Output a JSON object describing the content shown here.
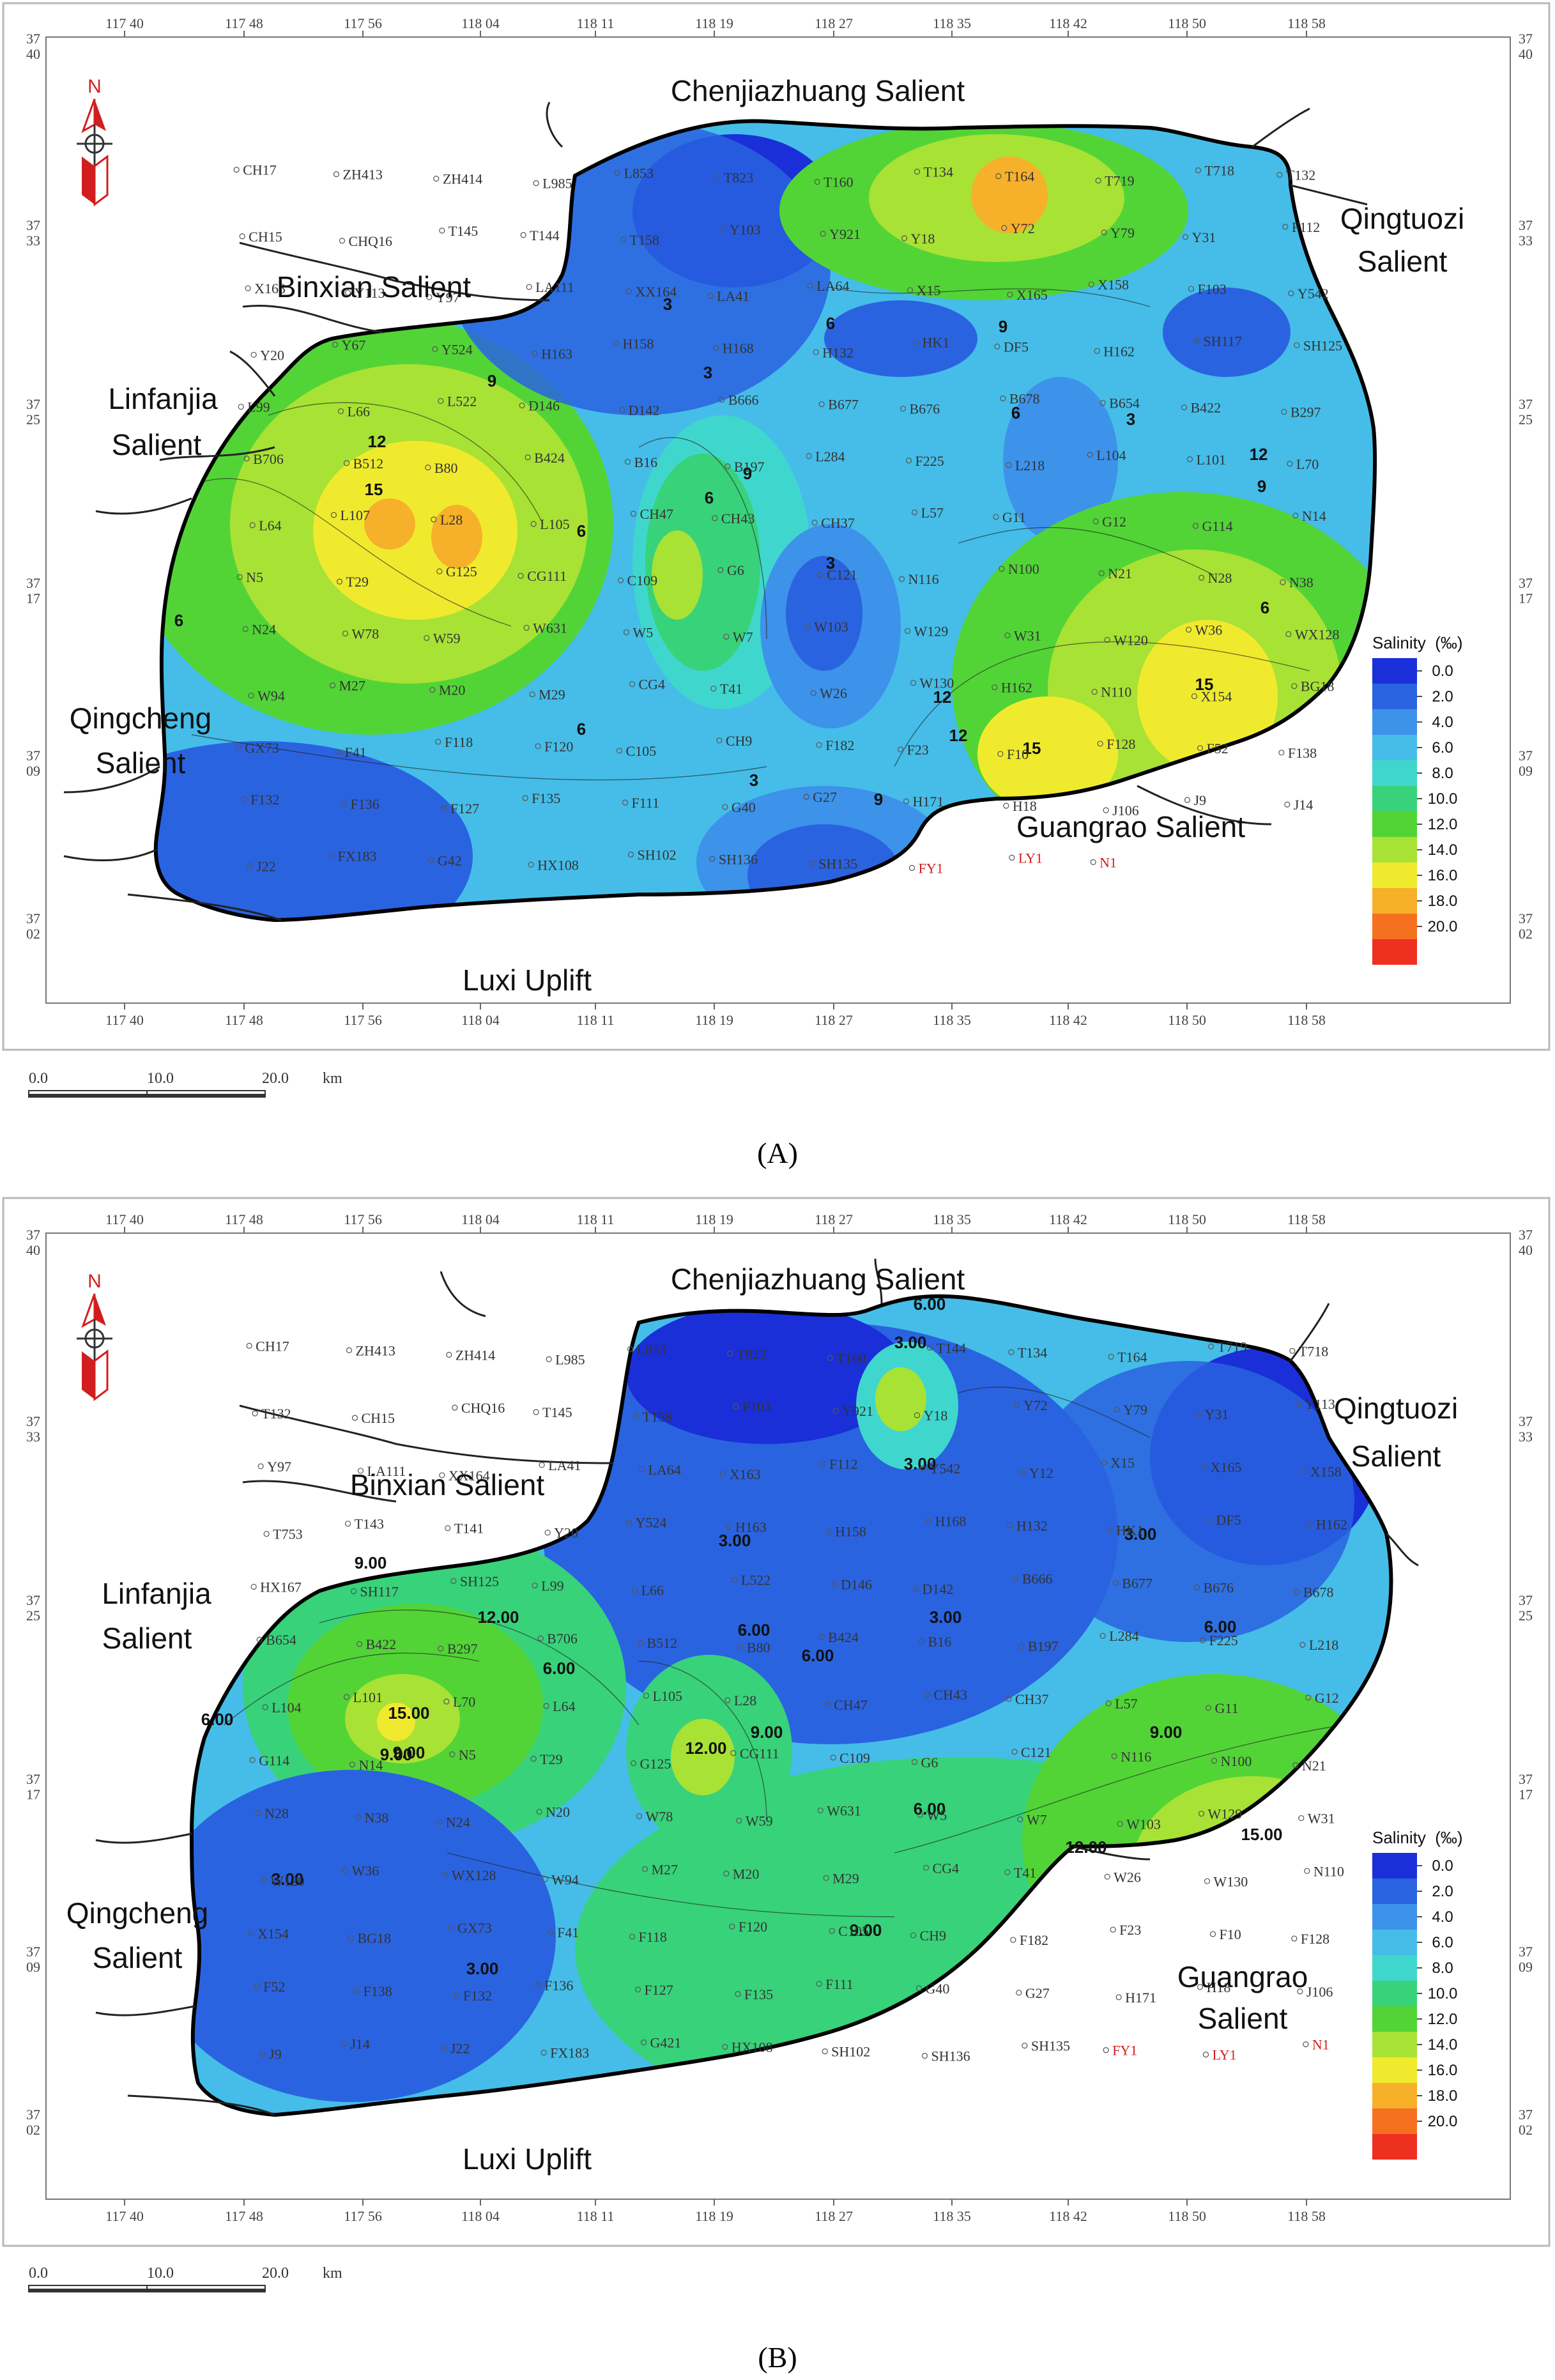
{
  "lon_ticks": [
    "117 40",
    "117 48",
    "117 56",
    "118 04",
    "118 11",
    "118 19",
    "118 27",
    "118 35",
    "118 42",
    "118 50",
    "118 58"
  ],
  "lat_ticks": [
    [
      "37",
      "40"
    ],
    [
      "37",
      "33"
    ],
    [
      "37",
      "25"
    ],
    [
      "37",
      "17"
    ],
    [
      "37",
      "09"
    ],
    [
      "37",
      "02"
    ]
  ],
  "north_label": "N",
  "legend": {
    "title": "Salinity  (‰)",
    "ticks": [
      "0.0",
      "2.0",
      "4.0",
      "6.0",
      "8.0",
      "10.0",
      "12.0",
      "14.0",
      "16.0",
      "18.0",
      "20.0"
    ],
    "colors": [
      "#1a2fd8",
      "#2a63e0",
      "#3d92ea",
      "#45bde8",
      "#3fd7cd",
      "#38d27a",
      "#52d437",
      "#a8e235",
      "#f0ea2e",
      "#f7b02a",
      "#f5701f",
      "#ee3020"
    ]
  },
  "scale_bar": {
    "ticks": [
      "0.0",
      "10.0",
      "20.0"
    ],
    "unit": "km"
  },
  "panels": [
    {
      "label": "(A)",
      "regions": {
        "chenjiazhuang": "Chenjiazhuang Salient",
        "qingtuozi_1": "Qingtuozi",
        "qingtuozi_2": "Salient",
        "binxian": "Binxian Salient",
        "linfanjia_1": "Linfanjia",
        "linfanjia_2": "Salient",
        "qingcheng_1": "Qingcheng",
        "qingcheng_2": "Salient",
        "guangrao": "Guangrao Salient",
        "luxi": "Luxi Uplift"
      },
      "contour_labels": [
        "15",
        "12",
        "9",
        "6",
        "3",
        "3",
        "6",
        "9",
        "6",
        "3",
        "6",
        "9",
        "3",
        "12",
        "9",
        "6",
        "12",
        "15",
        "15",
        "12",
        "9",
        "6",
        "3",
        "6"
      ],
      "wells": [
        "CH17",
        "ZH413",
        "ZH414",
        "L985",
        "L853",
        "T823",
        "T160",
        "T134",
        "T164",
        "T719",
        "T718",
        "T132",
        "CH15",
        "CHQ16",
        "T145",
        "T144",
        "T158",
        "Y103",
        "Y921",
        "Y18",
        "Y72",
        "Y79",
        "Y31",
        "F112",
        "X163",
        "Y113",
        "Y97",
        "LA111",
        "XX164",
        "LA41",
        "LA64",
        "X15",
        "X165",
        "X158",
        "F103",
        "Y542",
        "Y20",
        "Y67",
        "Y524",
        "H163",
        "H158",
        "H168",
        "H132",
        "HK1",
        "DF5",
        "H162",
        "SH117",
        "SH125",
        "L99",
        "L66",
        "L522",
        "D146",
        "D142",
        "B666",
        "B677",
        "B676",
        "B678",
        "B654",
        "B422",
        "B297",
        "B706",
        "B512",
        "B80",
        "B424",
        "B16",
        "B197",
        "L284",
        "F225",
        "L218",
        "L104",
        "L101",
        "L70",
        "L64",
        "L107",
        "L28",
        "L105",
        "CH47",
        "CH43",
        "CH37",
        "L57",
        "G11",
        "G12",
        "G114",
        "N14",
        "N5",
        "T29",
        "G125",
        "CG111",
        "C109",
        "G6",
        "C121",
        "N116",
        "N100",
        "N21",
        "N28",
        "N38",
        "N24",
        "W78",
        "W59",
        "W631",
        "W5",
        "W7",
        "W103",
        "W129",
        "W31",
        "W120",
        "W36",
        "WX128",
        "W94",
        "M27",
        "M20",
        "M29",
        "CG4",
        "T41",
        "W26",
        "W130",
        "H162",
        "N110",
        "X154",
        "BG18",
        "GX73",
        "F41",
        "F118",
        "F120",
        "C105",
        "CH9",
        "F182",
        "F23",
        "F10",
        "F128",
        "F52",
        "F138",
        "F132",
        "F136",
        "F127",
        "F135",
        "F111",
        "G40",
        "G27",
        "H171",
        "H18",
        "J106",
        "J9",
        "J14",
        "J22",
        "FX183",
        "G42",
        "HX108",
        "SH102",
        "SH136",
        "SH135",
        "FY1",
        "LY1",
        "N1"
      ]
    },
    {
      "label": "(B)",
      "regions": {
        "chenjiazhuang": "Chenjiazhuang Salient",
        "qingtuozi_1": "Qingtuozi",
        "qingtuozi_2": "Salient",
        "binxian": "Binxian Salient",
        "linfanjia_1": "Linfanjia",
        "linfanjia_2": "Salient",
        "qingcheng_1": "Qingcheng",
        "qingcheng_2": "Salient",
        "guangrao_1": "Guangrao",
        "guangrao_2": "Salient",
        "luxi": "Luxi Uplift"
      },
      "contour_labels": [
        "6.00",
        "9.00",
        "3.00",
        "9.00",
        "12.00",
        "15.00",
        "6.00",
        "9.00",
        "3.00",
        "6.00",
        "12.00",
        "9.00",
        "3.00",
        "3.00",
        "6.00",
        "3.00",
        "6.00",
        "9.00",
        "12.00",
        "15.00",
        "3.00",
        "6.00",
        "9.00",
        "6.00",
        "3.00"
      ],
      "wells": [
        "CH17",
        "ZH413",
        "ZH414",
        "L985",
        "L853",
        "T823",
        "T160",
        "T144",
        "T134",
        "T164",
        "T719",
        "T718",
        "T132",
        "CH15",
        "CHQ16",
        "T145",
        "T158",
        "F103",
        "Y921",
        "Y18",
        "Y72",
        "Y79",
        "Y31",
        "Y113",
        "Y97",
        "LA111",
        "XX164",
        "LA41",
        "LA64",
        "X163",
        "F112",
        "Y542",
        "Y12",
        "X15",
        "X165",
        "X158",
        "T753",
        "T143",
        "T141",
        "Y20",
        "Y524",
        "H163",
        "H158",
        "H168",
        "H132",
        "HK1",
        "DF5",
        "H162",
        "HX167",
        "SH117",
        "SH125",
        "L99",
        "L66",
        "L522",
        "D146",
        "D142",
        "B666",
        "B677",
        "B676",
        "B678",
        "B654",
        "B422",
        "B297",
        "B706",
        "B512",
        "B80",
        "B424",
        "B16",
        "B197",
        "L284",
        "F225",
        "L218",
        "L104",
        "L101",
        "L70",
        "L64",
        "L105",
        "L28",
        "CH47",
        "CH43",
        "CH37",
        "L57",
        "G11",
        "G12",
        "G114",
        "N14",
        "N5",
        "T29",
        "G125",
        "CG111",
        "C109",
        "G6",
        "C121",
        "N116",
        "N100",
        "N21",
        "N28",
        "N38",
        "N24",
        "N20",
        "W78",
        "W59",
        "W631",
        "W5",
        "W7",
        "W103",
        "W129",
        "W31",
        "W120",
        "W36",
        "WX128",
        "W94",
        "M27",
        "M20",
        "M29",
        "CG4",
        "T41",
        "W26",
        "W130",
        "N110",
        "X154",
        "BG18",
        "GX73",
        "F41",
        "F118",
        "F120",
        "C105",
        "CH9",
        "F182",
        "F23",
        "F10",
        "F128",
        "F52",
        "F138",
        "F132",
        "F136",
        "F127",
        "F135",
        "F111",
        "G40",
        "G27",
        "H171",
        "H18",
        "J106",
        "J9",
        "J14",
        "J22",
        "FX183",
        "G421",
        "HX108",
        "SH102",
        "SH136",
        "SH135",
        "FY1",
        "LY1",
        "N1"
      ]
    }
  ]
}
